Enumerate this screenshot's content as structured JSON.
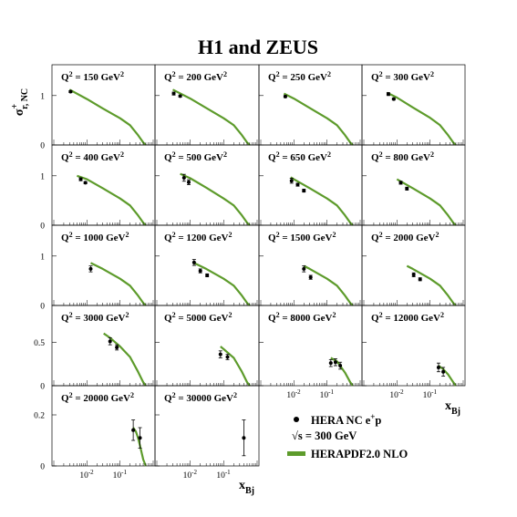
{
  "chart_data": {
    "type": "scatter",
    "title": "H1 and ZEUS",
    "ylabel_main": "σ",
    "ylabel_sup": "+",
    "ylabel_sub": "r, NC",
    "xlabel_main": "x",
    "xlabel_sub": "Bj",
    "x_scale": "log",
    "xlim": [
      0.001,
      1
    ],
    "x_tick_exponents": [
      "-2",
      "-1"
    ],
    "x_tick_base": "10",
    "legend": {
      "data_label": "HERA NC e",
      "data_sup": "+",
      "data_suffix": "p",
      "energy_label": "√s = 300 GeV",
      "model_label": "HERAPDF2.0 NLO"
    },
    "colors": {
      "model": "#5d9b2b",
      "data": "#000000"
    },
    "rows": [
      {
        "ylim": [
          0,
          1.55
        ],
        "yticks": [
          {
            "value": 0,
            "label": "0"
          },
          {
            "value": 1,
            "label": "1"
          }
        ]
      },
      {
        "ylim": [
          0,
          1.55
        ],
        "yticks": [
          {
            "value": 0,
            "label": "0"
          },
          {
            "value": 1,
            "label": "1"
          }
        ]
      },
      {
        "ylim": [
          0,
          1.55
        ],
        "yticks": [
          {
            "value": 0,
            "label": "0"
          },
          {
            "value": 1,
            "label": "1"
          }
        ]
      },
      {
        "ylim": [
          0,
          0.88
        ],
        "yticks": [
          {
            "value": 0,
            "label": "0"
          },
          {
            "value": 0.5,
            "label": "0.5"
          }
        ]
      },
      {
        "ylim": [
          0,
          0.3
        ],
        "yticks": [
          {
            "value": 0,
            "label": "0"
          },
          {
            "value": 0.2,
            "label": "0.2"
          }
        ]
      }
    ],
    "panels": [
      {
        "q2": "150",
        "row": 0,
        "col": 0,
        "model": [
          [
            0.003,
            1.12
          ],
          [
            0.01,
            0.93
          ],
          [
            0.03,
            0.74
          ],
          [
            0.1,
            0.54
          ],
          [
            0.2,
            0.4
          ],
          [
            0.35,
            0.2
          ],
          [
            0.5,
            0.05
          ],
          [
            0.6,
            0.0
          ]
        ],
        "points": [
          {
            "x": 0.0032,
            "y": 1.08,
            "err": 0.02
          }
        ]
      },
      {
        "q2": "200",
        "row": 0,
        "col": 1,
        "model": [
          [
            0.003,
            1.12
          ],
          [
            0.01,
            0.94
          ],
          [
            0.03,
            0.75
          ],
          [
            0.1,
            0.54
          ],
          [
            0.2,
            0.4
          ],
          [
            0.35,
            0.2
          ],
          [
            0.5,
            0.05
          ],
          [
            0.6,
            0.0
          ]
        ],
        "points": [
          {
            "x": 0.0032,
            "y": 1.04,
            "err": 0.03
          },
          {
            "x": 0.005,
            "y": 0.99,
            "err": 0.02
          }
        ]
      },
      {
        "q2": "250",
        "row": 0,
        "col": 2,
        "model": [
          [
            0.005,
            1.04
          ],
          [
            0.01,
            0.94
          ],
          [
            0.03,
            0.75
          ],
          [
            0.1,
            0.54
          ],
          [
            0.2,
            0.4
          ],
          [
            0.35,
            0.2
          ],
          [
            0.5,
            0.05
          ],
          [
            0.6,
            0.0
          ]
        ],
        "points": [
          {
            "x": 0.0055,
            "y": 0.98,
            "err": 0.02
          }
        ]
      },
      {
        "q2": "300",
        "row": 0,
        "col": 3,
        "model": [
          [
            0.005,
            1.06
          ],
          [
            0.01,
            0.96
          ],
          [
            0.03,
            0.76
          ],
          [
            0.1,
            0.55
          ],
          [
            0.2,
            0.4
          ],
          [
            0.35,
            0.2
          ],
          [
            0.5,
            0.05
          ],
          [
            0.6,
            0.0
          ]
        ],
        "points": [
          {
            "x": 0.0055,
            "y": 1.03,
            "err": 0.03
          },
          {
            "x": 0.008,
            "y": 0.93,
            "err": 0.02
          }
        ]
      },
      {
        "q2": "400",
        "row": 1,
        "col": 0,
        "model": [
          [
            0.005,
            1.0
          ],
          [
            0.01,
            0.93
          ],
          [
            0.03,
            0.75
          ],
          [
            0.1,
            0.54
          ],
          [
            0.2,
            0.4
          ],
          [
            0.35,
            0.2
          ],
          [
            0.5,
            0.05
          ],
          [
            0.6,
            0.0
          ]
        ],
        "points": [
          {
            "x": 0.0065,
            "y": 0.93,
            "err": 0.03
          },
          {
            "x": 0.009,
            "y": 0.86,
            "err": 0.02
          }
        ]
      },
      {
        "q2": "500",
        "row": 1,
        "col": 1,
        "model": [
          [
            0.005,
            1.04
          ],
          [
            0.01,
            0.95
          ],
          [
            0.03,
            0.76
          ],
          [
            0.1,
            0.54
          ],
          [
            0.2,
            0.4
          ],
          [
            0.35,
            0.2
          ],
          [
            0.5,
            0.05
          ],
          [
            0.6,
            0.0
          ]
        ],
        "points": [
          {
            "x": 0.0065,
            "y": 0.96,
            "err": 0.07
          },
          {
            "x": 0.009,
            "y": 0.87,
            "err": 0.05
          }
        ]
      },
      {
        "q2": "650",
        "row": 1,
        "col": 2,
        "model": [
          [
            0.008,
            0.97
          ],
          [
            0.01,
            0.93
          ],
          [
            0.03,
            0.75
          ],
          [
            0.1,
            0.54
          ],
          [
            0.2,
            0.4
          ],
          [
            0.35,
            0.2
          ],
          [
            0.5,
            0.05
          ],
          [
            0.6,
            0.0
          ]
        ],
        "points": [
          {
            "x": 0.0085,
            "y": 0.9,
            "err": 0.05
          },
          {
            "x": 0.013,
            "y": 0.82,
            "err": 0.03
          },
          {
            "x": 0.02,
            "y": 0.7,
            "err": 0.03
          }
        ]
      },
      {
        "q2": "800",
        "row": 1,
        "col": 3,
        "model": [
          [
            0.01,
            0.93
          ],
          [
            0.03,
            0.75
          ],
          [
            0.1,
            0.54
          ],
          [
            0.2,
            0.4
          ],
          [
            0.35,
            0.2
          ],
          [
            0.5,
            0.05
          ],
          [
            0.6,
            0.0
          ]
        ],
        "points": [
          {
            "x": 0.013,
            "y": 0.86,
            "err": 0.03
          },
          {
            "x": 0.02,
            "y": 0.74,
            "err": 0.03
          }
        ]
      },
      {
        "q2": "1000",
        "row": 2,
        "col": 0,
        "model": [
          [
            0.013,
            0.86
          ],
          [
            0.03,
            0.74
          ],
          [
            0.1,
            0.54
          ],
          [
            0.2,
            0.4
          ],
          [
            0.35,
            0.2
          ],
          [
            0.5,
            0.05
          ],
          [
            0.6,
            0.0
          ]
        ],
        "points": [
          {
            "x": 0.013,
            "y": 0.74,
            "err": 0.06
          }
        ]
      },
      {
        "q2": "1200",
        "row": 2,
        "col": 1,
        "model": [
          [
            0.013,
            0.86
          ],
          [
            0.03,
            0.74
          ],
          [
            0.1,
            0.54
          ],
          [
            0.2,
            0.4
          ],
          [
            0.35,
            0.2
          ],
          [
            0.5,
            0.05
          ],
          [
            0.6,
            0.0
          ]
        ],
        "points": [
          {
            "x": 0.013,
            "y": 0.87,
            "err": 0.06
          },
          {
            "x": 0.02,
            "y": 0.7,
            "err": 0.04
          },
          {
            "x": 0.032,
            "y": 0.61,
            "err": 0.03
          }
        ]
      },
      {
        "q2": "1500",
        "row": 2,
        "col": 2,
        "model": [
          [
            0.02,
            0.8
          ],
          [
            0.03,
            0.74
          ],
          [
            0.1,
            0.54
          ],
          [
            0.2,
            0.4
          ],
          [
            0.35,
            0.2
          ],
          [
            0.5,
            0.05
          ],
          [
            0.6,
            0.0
          ]
        ],
        "points": [
          {
            "x": 0.02,
            "y": 0.74,
            "err": 0.06
          },
          {
            "x": 0.032,
            "y": 0.57,
            "err": 0.04
          }
        ]
      },
      {
        "q2": "2000",
        "row": 2,
        "col": 3,
        "model": [
          [
            0.02,
            0.8
          ],
          [
            0.03,
            0.74
          ],
          [
            0.1,
            0.54
          ],
          [
            0.2,
            0.4
          ],
          [
            0.35,
            0.2
          ],
          [
            0.5,
            0.05
          ],
          [
            0.6,
            0.0
          ]
        ],
        "points": [
          {
            "x": 0.032,
            "y": 0.62,
            "err": 0.04
          },
          {
            "x": 0.05,
            "y": 0.53,
            "err": 0.03
          }
        ]
      },
      {
        "q2": "3000",
        "row": 3,
        "col": 0,
        "model": [
          [
            0.032,
            0.6
          ],
          [
            0.05,
            0.55
          ],
          [
            0.1,
            0.45
          ],
          [
            0.2,
            0.33
          ],
          [
            0.35,
            0.16
          ],
          [
            0.5,
            0.04
          ],
          [
            0.6,
            0.0
          ]
        ],
        "points": [
          {
            "x": 0.05,
            "y": 0.51,
            "err": 0.04
          },
          {
            "x": 0.08,
            "y": 0.44,
            "err": 0.03
          }
        ]
      },
      {
        "q2": "5000",
        "row": 3,
        "col": 1,
        "model": [
          [
            0.08,
            0.45
          ],
          [
            0.1,
            0.42
          ],
          [
            0.2,
            0.32
          ],
          [
            0.35,
            0.16
          ],
          [
            0.5,
            0.04
          ],
          [
            0.6,
            0.0
          ]
        ],
        "points": [
          {
            "x": 0.08,
            "y": 0.36,
            "err": 0.04
          },
          {
            "x": 0.13,
            "y": 0.33,
            "err": 0.03
          }
        ]
      },
      {
        "q2": "8000",
        "row": 3,
        "col": 2,
        "model": [
          [
            0.13,
            0.32
          ],
          [
            0.2,
            0.28
          ],
          [
            0.35,
            0.15
          ],
          [
            0.5,
            0.04
          ],
          [
            0.6,
            0.0
          ]
        ],
        "points": [
          {
            "x": 0.13,
            "y": 0.26,
            "err": 0.04
          },
          {
            "x": 0.18,
            "y": 0.27,
            "err": 0.04
          },
          {
            "x": 0.25,
            "y": 0.23,
            "err": 0.04
          }
        ]
      },
      {
        "q2": "12000",
        "row": 3,
        "col": 3,
        "model": [
          [
            0.18,
            0.23
          ],
          [
            0.25,
            0.19
          ],
          [
            0.35,
            0.13
          ],
          [
            0.5,
            0.04
          ],
          [
            0.6,
            0.0
          ]
        ],
        "points": [
          {
            "x": 0.18,
            "y": 0.21,
            "err": 0.05
          },
          {
            "x": 0.25,
            "y": 0.16,
            "err": 0.05
          }
        ]
      },
      {
        "q2": "20000",
        "row": 4,
        "col": 0,
        "model": [
          [
            0.25,
            0.15
          ],
          [
            0.3,
            0.135
          ],
          [
            0.35,
            0.11
          ],
          [
            0.4,
            0.08
          ],
          [
            0.5,
            0.025
          ],
          [
            0.6,
            0.0
          ]
        ],
        "points": [
          {
            "x": 0.25,
            "y": 0.14,
            "err": 0.04
          },
          {
            "x": 0.4,
            "y": 0.11,
            "err": 0.04
          }
        ]
      },
      {
        "q2": "30000",
        "row": 4,
        "col": 1,
        "model": [],
        "points": [
          {
            "x": 0.4,
            "y": 0.11,
            "err": 0.07
          }
        ]
      }
    ]
  }
}
